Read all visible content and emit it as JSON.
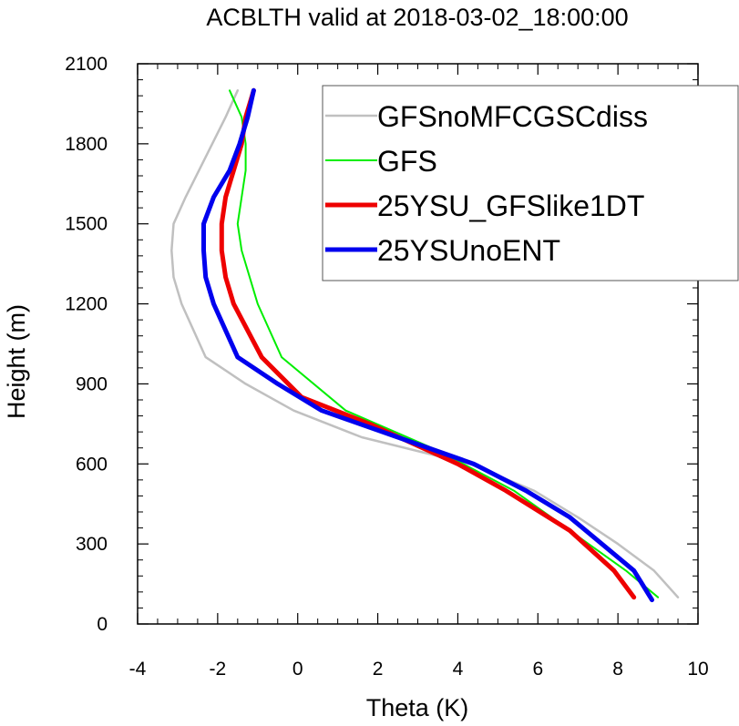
{
  "chart_data": {
    "type": "line",
    "title": "ACBLTH valid at 2018-03-02_18:00:00",
    "xlabel": "Theta (K)",
    "ylabel": "Height (m)",
    "xlim": [
      -4,
      10
    ],
    "ylim": [
      0,
      2100
    ],
    "xticks": [
      -4,
      -2,
      0,
      2,
      4,
      6,
      8,
      10
    ],
    "yticks": [
      0,
      300,
      600,
      900,
      1200,
      1500,
      1800,
      2100
    ],
    "legend_position": "top-right",
    "series": [
      {
        "name": "GFSnoMFCGSCdiss",
        "color": "#c0c0c0",
        "points": [
          [
            9.5,
            100
          ],
          [
            8.9,
            200
          ],
          [
            8.0,
            300
          ],
          [
            7.0,
            400
          ],
          [
            5.9,
            500
          ],
          [
            4.3,
            600
          ],
          [
            1.6,
            700
          ],
          [
            -0.1,
            800
          ],
          [
            -1.3,
            900
          ],
          [
            -2.3,
            1000
          ],
          [
            -2.9,
            1200
          ],
          [
            -3.1,
            1300
          ],
          [
            -3.15,
            1400
          ],
          [
            -3.1,
            1500
          ],
          [
            -2.8,
            1600
          ],
          [
            -1.8,
            1900
          ],
          [
            -1.5,
            2000
          ]
        ]
      },
      {
        "name": "GFS",
        "color": "#00ee00",
        "points": [
          [
            9.0,
            100
          ],
          [
            8.2,
            200
          ],
          [
            6.8,
            350
          ],
          [
            5.4,
            500
          ],
          [
            3.5,
            650
          ],
          [
            1.2,
            800
          ],
          [
            -0.4,
            1000
          ],
          [
            -1.0,
            1200
          ],
          [
            -1.4,
            1400
          ],
          [
            -1.5,
            1500
          ],
          [
            -1.4,
            1600
          ],
          [
            -1.3,
            1700
          ],
          [
            -1.3,
            1800
          ],
          [
            -1.4,
            1900
          ],
          [
            -1.7,
            2000
          ]
        ]
      },
      {
        "name": "25YSU_GFSlike1DT",
        "color": "#ee0000",
        "points": [
          [
            8.4,
            100
          ],
          [
            7.9,
            200
          ],
          [
            6.8,
            350
          ],
          [
            5.2,
            500
          ],
          [
            4.0,
            600
          ],
          [
            1.8,
            750
          ],
          [
            0.1,
            850
          ],
          [
            -0.9,
            1000
          ],
          [
            -1.6,
            1200
          ],
          [
            -1.8,
            1300
          ],
          [
            -1.9,
            1400
          ],
          [
            -1.9,
            1500
          ],
          [
            -1.8,
            1600
          ],
          [
            -1.6,
            1700
          ],
          [
            -1.4,
            1800
          ],
          [
            -1.3,
            1900
          ],
          [
            -1.1,
            2000
          ]
        ]
      },
      {
        "name": "25YSUnoENT",
        "color": "#0000ee",
        "points": [
          [
            8.85,
            90
          ],
          [
            8.4,
            200
          ],
          [
            6.8,
            400
          ],
          [
            5.7,
            500
          ],
          [
            4.4,
            600
          ],
          [
            2.5,
            700
          ],
          [
            0.6,
            800
          ],
          [
            -0.5,
            900
          ],
          [
            -1.5,
            1000
          ],
          [
            -2.1,
            1200
          ],
          [
            -2.3,
            1300
          ],
          [
            -2.35,
            1400
          ],
          [
            -2.35,
            1500
          ],
          [
            -2.1,
            1600
          ],
          [
            -1.7,
            1700
          ],
          [
            -1.45,
            1800
          ],
          [
            -1.25,
            1900
          ],
          [
            -1.1,
            2000
          ]
        ]
      }
    ]
  }
}
